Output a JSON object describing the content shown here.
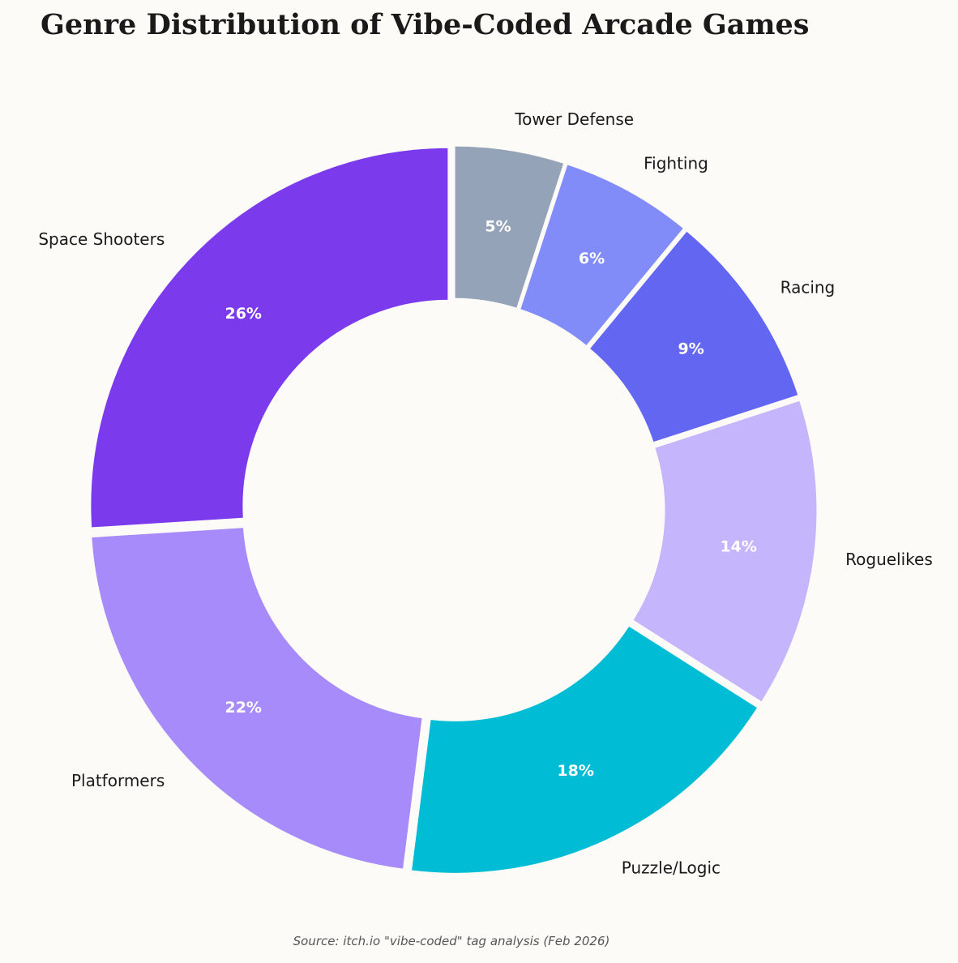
{
  "chart_data": {
    "type": "pie",
    "subtype": "donut",
    "title": "Genre Distribution of Vibe-Coded Arcade Games",
    "source": "Source: itch.io \"vibe-coded\" tag analysis (Feb 2026)",
    "start_angle_deg": 90,
    "direction": "counterclockwise",
    "categories": [
      "Space Shooters",
      "Platformers",
      "Puzzle/Logic",
      "Roguelikes",
      "Racing",
      "Fighting",
      "Tower Defense"
    ],
    "values": [
      26,
      22,
      18,
      14,
      9,
      6,
      5
    ],
    "labels_pct": [
      "26%",
      "22%",
      "18%",
      "14%",
      "9%",
      "6%",
      "5%"
    ],
    "colors": [
      "#7c3aed",
      "#a78bfa",
      "#00bcd4",
      "#c4b5fd",
      "#6366f1",
      "#818cf8",
      "#94a3b8"
    ],
    "legend": "none (labels outside slices)"
  },
  "header": {
    "title": "Genre Distribution of Vibe-Coded Arcade Games"
  },
  "footer": {
    "source": "Source: itch.io \"vibe-coded\" tag analysis (Feb 2026)"
  }
}
